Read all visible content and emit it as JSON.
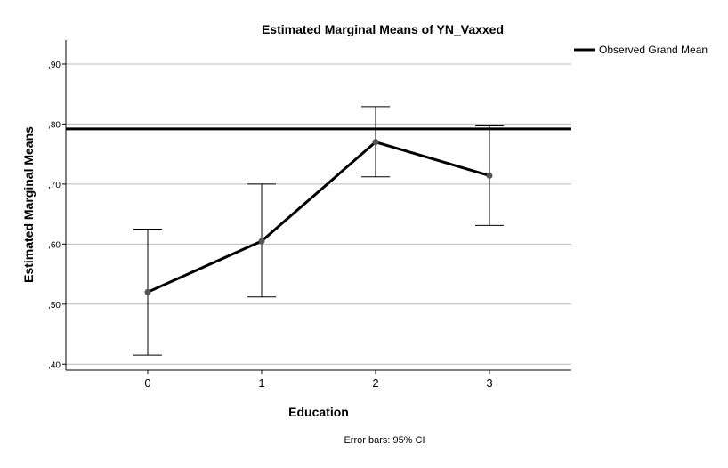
{
  "chart_data": {
    "type": "line",
    "title": "Estimated Marginal Means of YN_Vaxxed",
    "xlabel": "Education",
    "ylabel": "Estimated Marginal Means",
    "categories": [
      "0",
      "1",
      "2",
      "3"
    ],
    "ylim": [
      0.39,
      0.94
    ],
    "yticks": [
      0.4,
      0.5,
      0.6,
      0.7,
      0.8,
      0.9
    ],
    "ytick_labels": [
      ",40",
      ",50",
      ",60",
      ",70",
      ",80",
      ",90"
    ],
    "grid": "horizontal",
    "series": [
      {
        "values": [
          0.52,
          0.605,
          0.77,
          0.714
        ],
        "ci_lower": [
          0.415,
          0.512,
          0.712,
          0.631
        ],
        "ci_upper": [
          0.625,
          0.7,
          0.829,
          0.797
        ],
        "color": "#000000"
      }
    ],
    "reference_line": {
      "name": "Observed Grand Mean",
      "value": 0.792,
      "color": "#000000"
    },
    "legend": {
      "placement": "top-right",
      "label": "Observed Grand Mean"
    },
    "footnote": "Error bars: 95% CI"
  }
}
